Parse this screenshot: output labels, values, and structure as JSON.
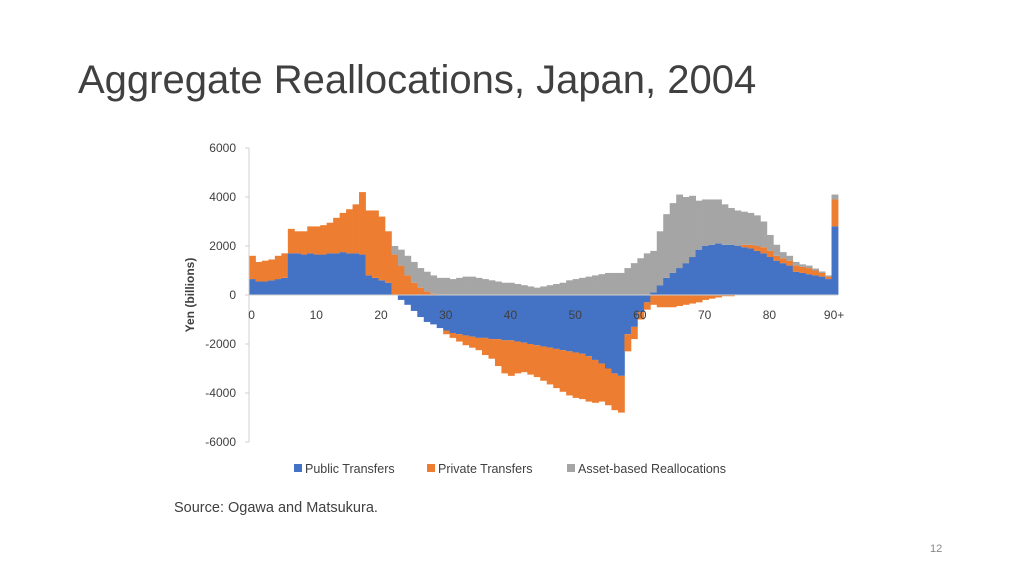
{
  "slide": {
    "title": "Aggregate Reallocations, Japan, 2004",
    "source": "Source:  Ogawa and Matsukura.",
    "page_number": "12"
  },
  "chart_data": {
    "type": "bar",
    "stacked": true,
    "ylabel": "Yen (billions)",
    "ylim": [
      -6000,
      6000
    ],
    "yticks": [
      6000,
      4000,
      2000,
      0,
      -2000,
      -4000,
      -6000
    ],
    "x": [
      0,
      1,
      2,
      3,
      4,
      5,
      6,
      7,
      8,
      9,
      10,
      11,
      12,
      13,
      14,
      15,
      16,
      17,
      18,
      19,
      20,
      21,
      22,
      23,
      24,
      25,
      26,
      27,
      28,
      29,
      30,
      31,
      32,
      33,
      34,
      35,
      36,
      37,
      38,
      39,
      40,
      41,
      42,
      43,
      44,
      45,
      46,
      47,
      48,
      49,
      50,
      51,
      52,
      53,
      54,
      55,
      56,
      57,
      58,
      59,
      60,
      61,
      62,
      63,
      64,
      65,
      66,
      67,
      68,
      69,
      70,
      71,
      72,
      73,
      74,
      75,
      76,
      77,
      78,
      79,
      80,
      81,
      82,
      83,
      84,
      85,
      86,
      87,
      88,
      89,
      90
    ],
    "xtick_labels": [
      {
        "x": 0,
        "label": "0"
      },
      {
        "x": 10,
        "label": "10"
      },
      {
        "x": 20,
        "label": "20"
      },
      {
        "x": 30,
        "label": "30"
      },
      {
        "x": 40,
        "label": "40"
      },
      {
        "x": 50,
        "label": "50"
      },
      {
        "x": 60,
        "label": "60"
      },
      {
        "x": 70,
        "label": "70"
      },
      {
        "x": 80,
        "label": "80"
      },
      {
        "x": 90,
        "label": "90+"
      }
    ],
    "legend_position": "bottom",
    "grid": false,
    "series": [
      {
        "name": "Public Transfers",
        "color": "#4472C4",
        "values": [
          650,
          550,
          550,
          600,
          650,
          700,
          1700,
          1700,
          1650,
          1700,
          1650,
          1650,
          1700,
          1700,
          1750,
          1700,
          1700,
          1650,
          800,
          700,
          600,
          500,
          0,
          -200,
          -400,
          -650,
          -900,
          -1100,
          -1200,
          -1350,
          -1450,
          -1550,
          -1600,
          -1650,
          -1700,
          -1750,
          -1750,
          -1800,
          -1800,
          -1850,
          -1850,
          -1900,
          -1950,
          -2000,
          -2050,
          -2100,
          -2150,
          -2200,
          -2250,
          -2300,
          -2350,
          -2400,
          -2500,
          -2650,
          -2800,
          -3000,
          -3200,
          -3300,
          -1600,
          -1300,
          -700,
          -300,
          100,
          400,
          700,
          900,
          1100,
          1300,
          1550,
          1850,
          2000,
          2050,
          2100,
          2050,
          2050,
          2000,
          1950,
          1900,
          1800,
          1700,
          1550,
          1400,
          1300,
          1200,
          950,
          900,
          850,
          800,
          750,
          650,
          2800
        ]
      },
      {
        "name": "Private Transfers",
        "color": "#ED7D31",
        "values": [
          950,
          800,
          850,
          850,
          950,
          1000,
          1000,
          900,
          950,
          1100,
          1150,
          1200,
          1250,
          1450,
          1600,
          1800,
          2000,
          2550,
          2650,
          2750,
          2600,
          2100,
          1650,
          1200,
          800,
          500,
          300,
          150,
          50,
          0,
          -150,
          -200,
          -300,
          -400,
          -450,
          -500,
          -700,
          -800,
          -1100,
          -1350,
          -1450,
          -1300,
          -1200,
          -1250,
          -1300,
          -1400,
          -1500,
          -1600,
          -1700,
          -1800,
          -1850,
          -1850,
          -1850,
          -1750,
          -1550,
          -1500,
          -1500,
          -1500,
          -700,
          -500,
          -300,
          -300,
          -400,
          -500,
          -500,
          -500,
          -450,
          -400,
          -350,
          -300,
          -200,
          -150,
          -100,
          -50,
          -50,
          0,
          100,
          150,
          200,
          250,
          250,
          200,
          200,
          200,
          250,
          250,
          250,
          200,
          150,
          100,
          1100
        ]
      },
      {
        "name": "Asset-based Reallocations",
        "color": "#A5A5A5",
        "values": [
          0,
          0,
          0,
          0,
          0,
          0,
          0,
          0,
          0,
          0,
          0,
          0,
          0,
          0,
          0,
          0,
          0,
          0,
          0,
          0,
          0,
          0,
          350,
          650,
          800,
          850,
          800,
          800,
          750,
          700,
          700,
          650,
          700,
          750,
          750,
          700,
          650,
          600,
          550,
          500,
          500,
          450,
          400,
          350,
          300,
          350,
          400,
          450,
          500,
          600,
          650,
          700,
          750,
          800,
          850,
          900,
          900,
          900,
          1100,
          1300,
          1500,
          1700,
          1700,
          2200,
          2600,
          2850,
          3000,
          2700,
          2500,
          2000,
          1900,
          1850,
          1800,
          1650,
          1500,
          1450,
          1350,
          1300,
          1250,
          1050,
          650,
          450,
          250,
          200,
          150,
          100,
          100,
          80,
          60,
          50,
          200
        ]
      }
    ]
  }
}
